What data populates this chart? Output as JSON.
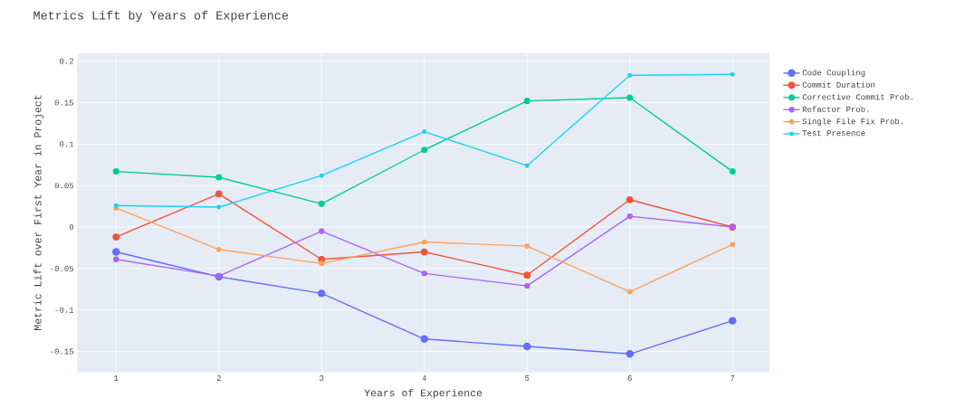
{
  "chart_data": {
    "type": "line",
    "title": "Metrics Lift by Years of Experience",
    "xlabel": "Years of Experience",
    "ylabel": "Metric Lift over First Year in Project",
    "x": [
      1,
      2,
      3,
      4,
      5,
      6,
      7
    ],
    "series": [
      {
        "name": "Code Coupling",
        "color": "#636efa",
        "values": [
          -0.03,
          -0.06,
          -0.08,
          -0.135,
          -0.144,
          -0.153,
          -0.113
        ]
      },
      {
        "name": "Commit Duration",
        "color": "#ef553b",
        "values": [
          -0.012,
          0.04,
          -0.039,
          -0.03,
          -0.058,
          0.033,
          0.0
        ]
      },
      {
        "name": "Corrective Commit Prob.",
        "color": "#00cc96",
        "values": [
          0.067,
          0.06,
          0.028,
          0.093,
          0.152,
          0.156,
          0.067
        ]
      },
      {
        "name": "Refactor Prob.",
        "color": "#ab63fa",
        "values": [
          -0.039,
          -0.059,
          -0.005,
          -0.056,
          -0.071,
          0.013,
          0.0
        ]
      },
      {
        "name": "Single File Fix Prob.",
        "color": "#ffa15a",
        "values": [
          0.023,
          -0.027,
          -0.044,
          -0.018,
          -0.023,
          -0.078,
          -0.021
        ]
      },
      {
        "name": "Test Presence",
        "color": "#19d3f3",
        "values": [
          0.026,
          0.024,
          0.062,
          0.115,
          0.074,
          0.183,
          0.184
        ]
      }
    ],
    "xlim": [
      0.62,
      7.36
    ],
    "ylim": [
      -0.175,
      0.21
    ],
    "xticks": [
      1,
      2,
      3,
      4,
      5,
      6,
      7
    ],
    "yticks": [
      -0.15,
      -0.1,
      -0.05,
      0,
      0.05,
      0.1,
      0.15,
      0.2
    ],
    "grid": true,
    "legend": "right",
    "marker": "circle",
    "line_style": "solid"
  }
}
